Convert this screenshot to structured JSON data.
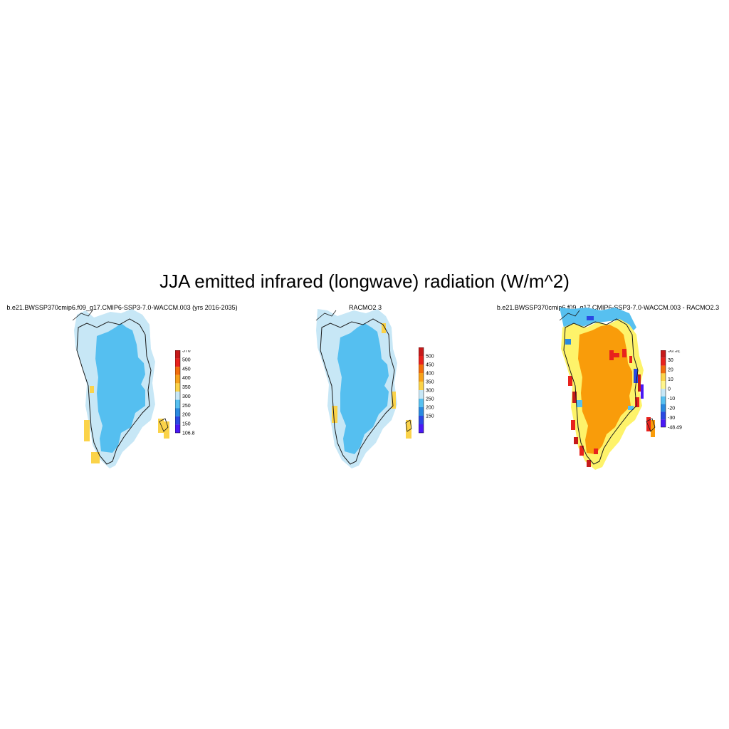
{
  "figure": {
    "title": "JJA emitted infrared (longwave) radiation (W/m^2)"
  },
  "panels": [
    {
      "title": "b.e21.BWSSP370cmip6.f09_g17.CMIP6-SSP3-7.0-WACCM.003 (yrs 2016-2035)",
      "colorbar": {
        "labels": [
          "576",
          "500",
          "450",
          "400",
          "350",
          "300",
          "250",
          "200",
          "150",
          "106.8"
        ],
        "colors": [
          "#c61a1a",
          "#e8221d",
          "#f26d0c",
          "#f7a21b",
          "#fbd349",
          "#c7e7f6",
          "#57c0f0",
          "#2a8ae0",
          "#2a49e3",
          "#4a18f5"
        ]
      },
      "dominant_fill": "#55bff0",
      "margin_fill": "#c7e7f6"
    },
    {
      "title": "RACMO2.3",
      "colorbar": {
        "labels": [
          "500",
          "450",
          "400",
          "350",
          "300",
          "250",
          "200",
          "150"
        ],
        "colors": [
          "#c61a1a",
          "#e8221d",
          "#f26d0c",
          "#f7a21b",
          "#fbd349",
          "#c7e7f6",
          "#57c0f0",
          "#2a8ae0",
          "#2a49e3",
          "#4a18f5"
        ]
      },
      "dominant_fill": "#55bff0",
      "margin_fill": "#c7e7f6"
    },
    {
      "title": "b.e21.BWSSP370cmip6.f09_g17.CMIP6-SSP3-7.0-WACCM.003 - RACMO2.3",
      "colorbar": {
        "labels": [
          "50.52",
          "30",
          "20",
          "10",
          "0",
          "-10",
          "-20",
          "-30",
          "-48.49"
        ],
        "colors": [
          "#c61a1a",
          "#e8221d",
          "#f26d0c",
          "#fbd349",
          "#fff58c",
          "#c7e7f6",
          "#57c0f0",
          "#2a8ae0",
          "#2a49e3",
          "#4a18f5"
        ]
      },
      "dominant_fill": "#f99c0a",
      "margin_fill": "#fef36a"
    }
  ]
}
